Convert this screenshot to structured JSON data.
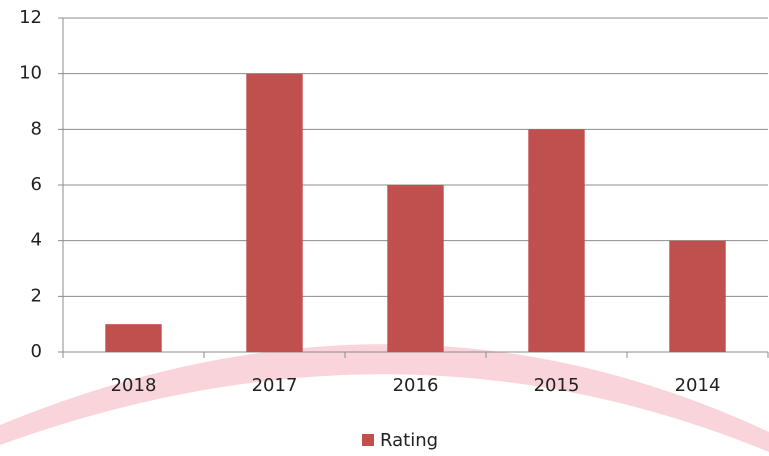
{
  "chart_data": {
    "type": "bar",
    "categories": [
      "2018",
      "2017",
      "2016",
      "2015",
      "2014"
    ],
    "series": [
      {
        "name": "Rating",
        "color": "#c0504d",
        "values": [
          1,
          10,
          6,
          8,
          4
        ]
      }
    ],
    "ylim": [
      0,
      12
    ],
    "yticks": [
      0,
      2,
      4,
      6,
      8,
      10,
      12
    ],
    "grid": true,
    "legend": "bottom"
  }
}
